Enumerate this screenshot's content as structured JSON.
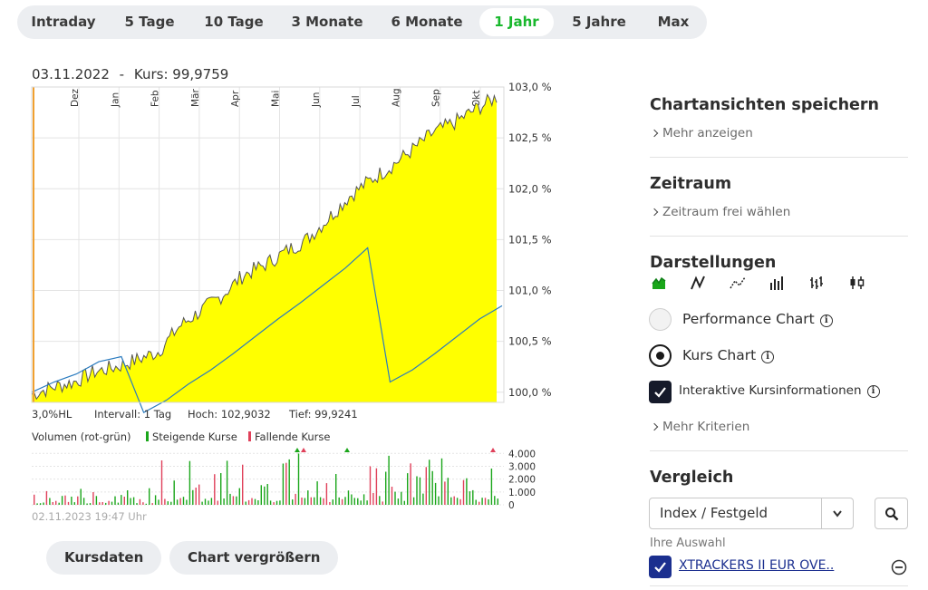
{
  "tabs": [
    {
      "label": "Intraday",
      "active": false
    },
    {
      "label": "5 Tage",
      "active": false
    },
    {
      "label": "10 Tage",
      "active": false
    },
    {
      "label": "3 Monate",
      "active": false
    },
    {
      "label": "6 Monate",
      "active": false
    },
    {
      "label": "1 Jahr",
      "active": true
    },
    {
      "label": "5 Jahre",
      "active": false
    },
    {
      "label": "Max",
      "active": false
    }
  ],
  "chart": {
    "header_date": "03.11.2022",
    "header_sep": "-",
    "header_kurs": "Kurs: 99,9759",
    "stats": {
      "hl": "3,0%HL",
      "intervall": "Intervall: 1 Tag",
      "hoch": "Hoch: 102,9032",
      "tief": "Tief: 99,9241"
    },
    "volume_legend": {
      "label": "Volumen (rot-grün)",
      "rising": "Steigende Kurse",
      "falling": "Fallende Kurse"
    },
    "timestamp": "02.11.2023 19:47 Uhr",
    "colors": {
      "area": "#ffff00",
      "price_line": "#555555",
      "compare_line": "#2a7bbf",
      "rising": "#1aa61a",
      "falling": "#e0405a",
      "marker": "#f0a030"
    }
  },
  "chart_data": [
    {
      "type": "area",
      "x_tick_labels": [
        "Dez",
        "Jan",
        "Feb",
        "Mär",
        "Apr",
        "Mai",
        "Jun",
        "Jul",
        "Aug",
        "Sep",
        "Okt"
      ],
      "y_tick_labels": [
        "103,0 %",
        "102,5 %",
        "102,0 %",
        "101,5 %",
        "101,0 %",
        "100,5 %",
        "100,0 %"
      ],
      "ylim": [
        99.9,
        103.0
      ],
      "series": [
        {
          "name": "",
          "values": [
            99.98,
            100.05,
            100.1,
            100.2,
            100.25,
            100.32,
            100.4,
            100.65,
            100.8,
            100.95,
            101.15,
            101.25,
            101.38,
            101.5,
            101.7,
            101.92,
            102.08,
            102.22,
            102.38,
            102.55,
            102.65,
            102.78,
            102.9
          ]
        }
      ],
      "compare_series": {
        "name": "",
        "values": [
          100.0,
          100.1,
          100.18,
          100.3,
          100.35,
          99.8,
          99.92,
          100.08,
          100.22,
          100.38,
          100.55,
          100.72,
          100.88,
          101.05,
          101.22,
          101.42,
          100.1,
          100.22,
          100.38,
          100.55,
          100.72,
          100.85
        ]
      }
    },
    {
      "type": "bar",
      "title": "",
      "y_tick_labels": [
        "4.000",
        "3.000",
        "2.000",
        "1.000",
        "0"
      ],
      "ylim": [
        0,
        4300
      ]
    }
  ],
  "panel": {
    "save_title": "Chartansichten speichern",
    "save_link": "Mehr anzeigen",
    "zeitraum_title": "Zeitraum",
    "zeitraum_link": "Zeitraum frei wählen",
    "darstellungen_title": "Darstellungen",
    "chart_types": [
      "area-chart-icon",
      "line-chart-icon",
      "line-dots-chart-icon",
      "bar-chart-icon",
      "ohlc-chart-icon",
      "candlestick-chart-icon"
    ],
    "performance_label": "Performance Chart",
    "kurs_label": "Kurs Chart",
    "interactive_label": "Interaktive Kursinformationen",
    "criteria_link": "Mehr Kriterien",
    "vergleich_title": "Vergleich",
    "select_value": "Index / Festgeld",
    "auswahl_label": "Ihre Auswahl",
    "selection_item": "XTRACKERS II EUR OVE..",
    "accent": "#151a2a"
  },
  "buttons": {
    "kursdaten": "Kursdaten",
    "vergroessern": "Chart vergrößern"
  },
  "info_glyph": "i"
}
